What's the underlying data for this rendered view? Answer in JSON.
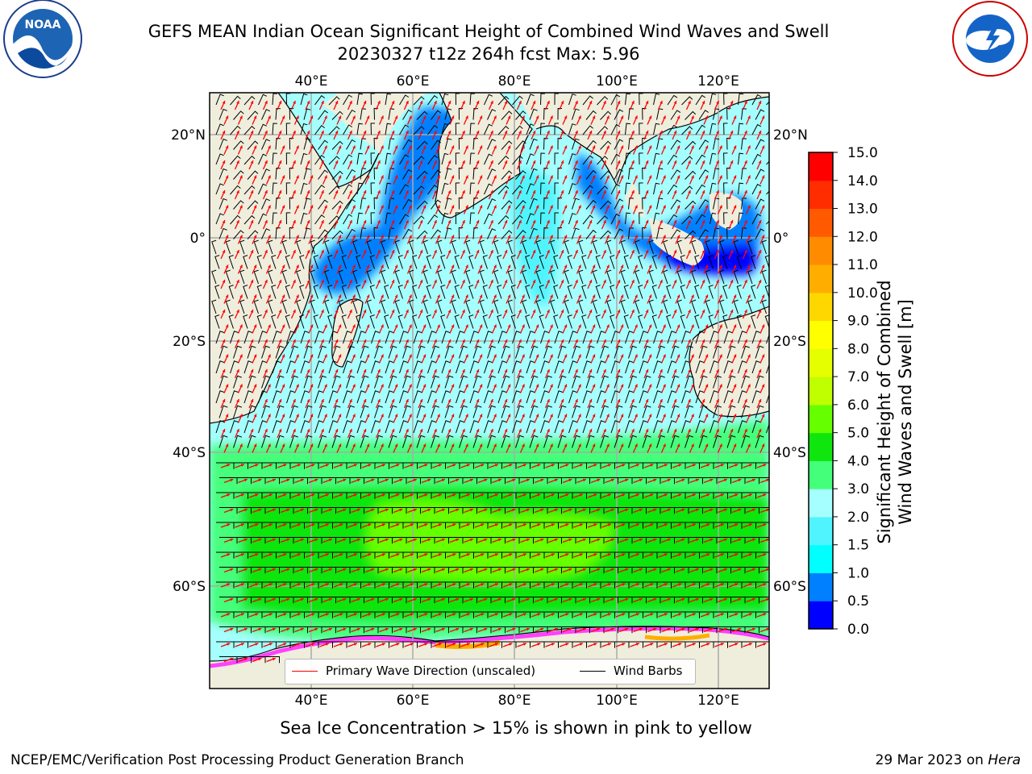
{
  "title": {
    "line1": "GEFS MEAN Indian Ocean Significant Height of Combined Wind Waves and Swell",
    "line2": "20230327 t12z 264h fcst   Max: 5.96"
  },
  "logos": {
    "left": "NOAA",
    "left_ring_text": "NATIONAL OCEANIC AND ATMOSPHERIC ADMINISTRATION · U.S. DEPARTMENT OF COMMERCE",
    "right_ring_text": "NATIONAL WEATHER SERVICE"
  },
  "map": {
    "lon_ticks": [
      "40°E",
      "60°E",
      "80°E",
      "100°E",
      "120°E"
    ],
    "lat_ticks": [
      "20°N",
      "0°",
      "20°S",
      "40°S",
      "60°S"
    ],
    "colors": {
      "land": "#efeddc",
      "ocean_light": "#a6ffff",
      "ocean_mid": "#4ff4ff",
      "ocean_blue": "#0080ff",
      "ocean_dark": "#0000ff",
      "green_light": "#44ff7a",
      "green_mid": "#0ee60e",
      "green_dark": "#66ff00",
      "ice_pink": "#ff40ff",
      "ice_orange": "#ffae00",
      "wave_arrow": "#ff0000",
      "wind_barb": "#000000"
    }
  },
  "legend": {
    "wave_label": "Primary Wave Direction (unscaled)",
    "wind_label": "Wind Barbs"
  },
  "colorbar": {
    "label_line1": "Significant Height of Combined",
    "label_line2": "Wind Waves and Swell [m]",
    "ticks": [
      "0.0",
      "0.5",
      "1.0",
      "1.5",
      "2.0",
      "3.0",
      "4.0",
      "5.0",
      "6.0",
      "7.0",
      "8.0",
      "9.0",
      "10.0",
      "11.0",
      "12.0",
      "13.0",
      "14.0",
      "15.0"
    ],
    "colors": [
      "#0000ff",
      "#0080ff",
      "#00ffff",
      "#4ff4ff",
      "#a6ffff",
      "#44ff7a",
      "#0ee60e",
      "#66ff00",
      "#bfff00",
      "#e6ff00",
      "#ffff00",
      "#ffd700",
      "#ffae00",
      "#ff8c00",
      "#ff5a00",
      "#ff2d00",
      "#ff0000"
    ]
  },
  "caption": "Sea Ice Concentration > 15% is shown in pink to yellow",
  "footer": {
    "left": "NCEP/EMC/Verification Post Processing Product Generation Branch",
    "right_prefix": "29 Mar 2023 on ",
    "right_host": "Hera"
  }
}
